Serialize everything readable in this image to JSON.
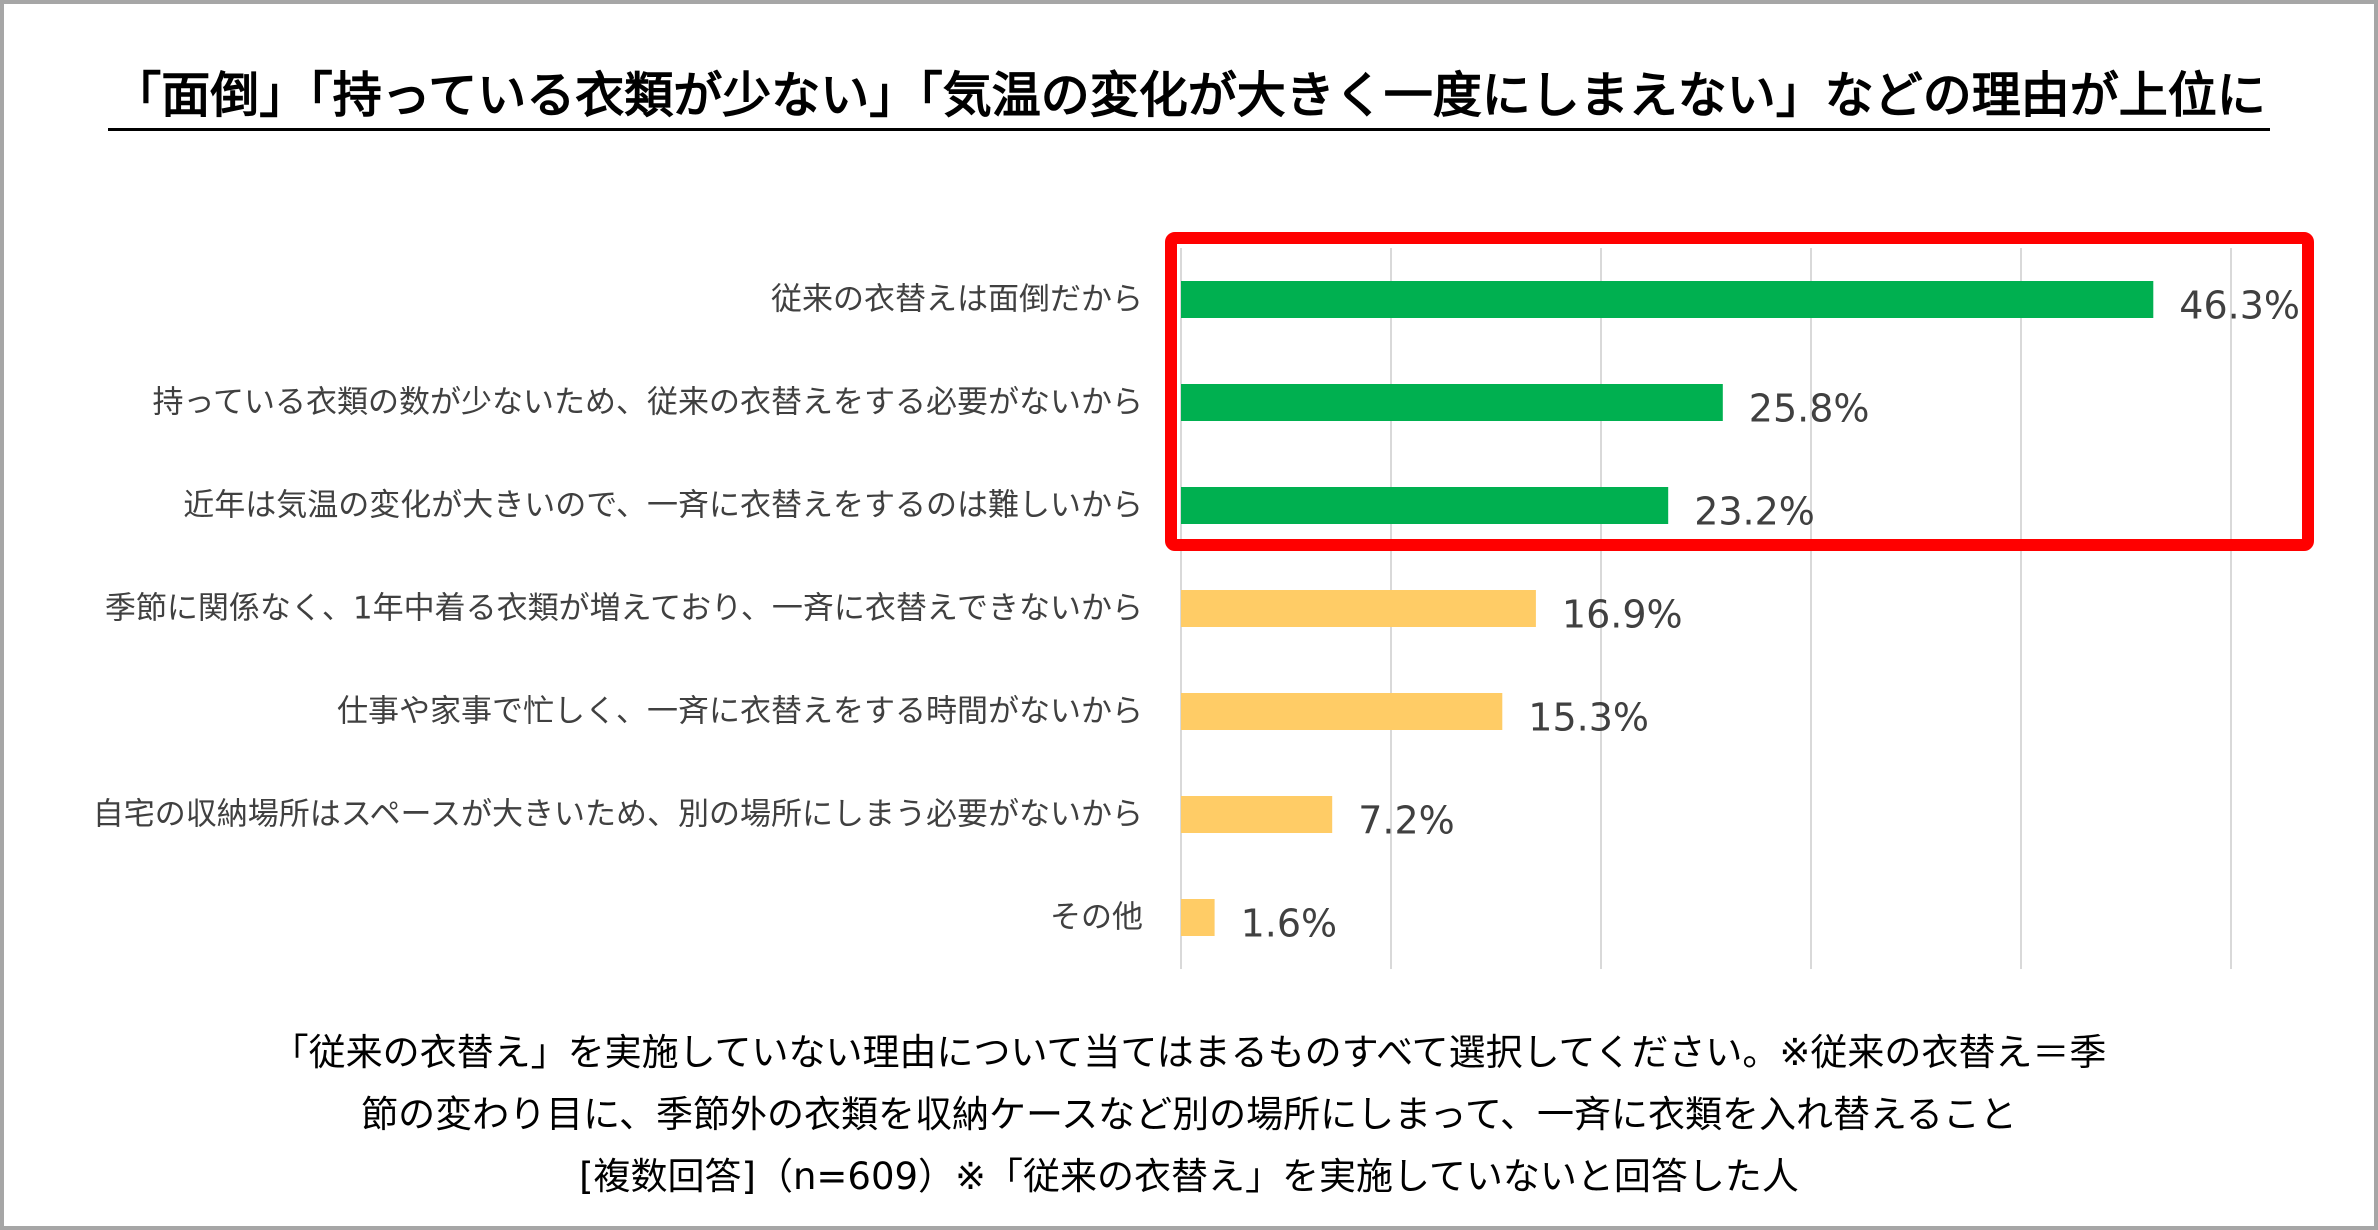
{
  "title": "「面倒」「持っている衣類が少ない」「気温の変化が大きく一度にしまえない」などの理由が上位に",
  "chart_data": {
    "type": "bar",
    "orientation": "horizontal",
    "categories": [
      "従来の衣替えは面倒だから",
      "持っている衣類の数が少ないため、従来の衣替えをする必要がないから",
      "近年は気温の変化が大きいので、一斉に衣替えをするのは難しいから",
      "季節に関係なく、1年中着る衣類が増えており、一斉に衣替えできないから",
      "仕事や家事で忙しく、一斉に衣替えをする時間がないから",
      "自宅の収納場所はスペースが大きいため、別の場所にしまう必要がないから",
      "その他"
    ],
    "values": [
      46.3,
      25.8,
      23.2,
      16.9,
      15.3,
      7.2,
      1.6
    ],
    "value_labels": [
      "46.3%",
      "25.8%",
      "23.2%",
      "16.9%",
      "15.3%",
      "7.2%",
      "1.6%"
    ],
    "xlim": [
      0,
      50
    ],
    "gridlines": [
      0,
      10,
      20,
      30,
      40,
      50
    ],
    "highlight_top_n": 3,
    "colors": {
      "highlight": "#00b050",
      "normal": "#ffcc66",
      "highlight_box": "#ff0000",
      "grid": "#d9d9d9",
      "label_text": "#404040"
    }
  },
  "caption": {
    "line1": "「従来の衣替え」を実施していない理由について当てはまるものすべて選択してください。※従来の衣替え＝季",
    "line2": "節の変わり目に、季節外の衣類を収納ケースなど別の場所にしまって、一斉に衣類を入れ替えること",
    "line3": "[複数回答]（n=609）※「従来の衣替え」を実施していないと回答した人"
  }
}
